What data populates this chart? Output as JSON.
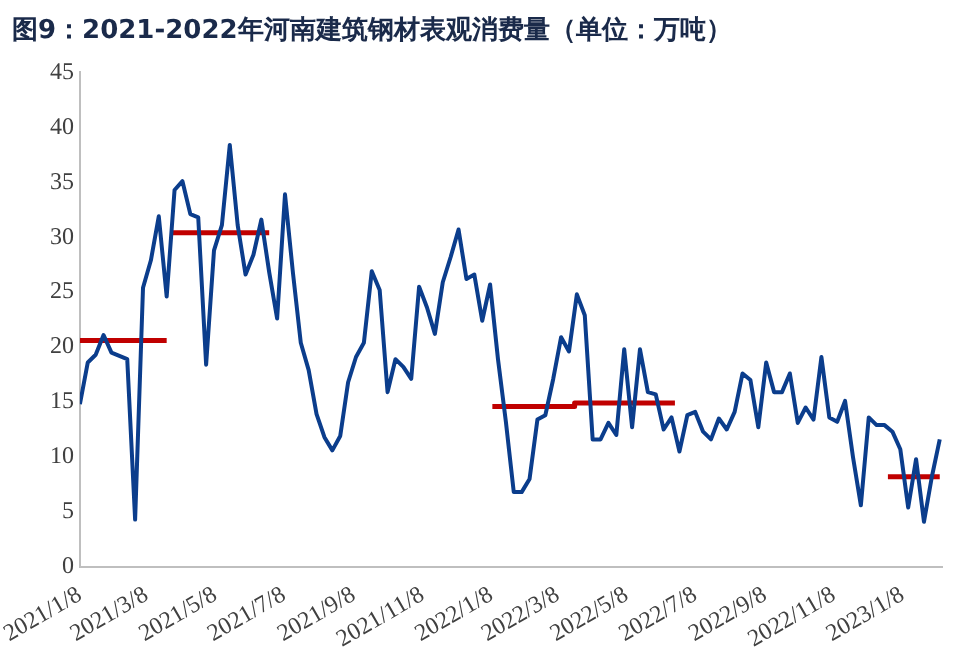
{
  "chart_data": {
    "type": "line",
    "title": "图9：2021-2022年河南建筑钢材表观消费量（单位：万吨）",
    "xlim": [
      "2021-01-08",
      "2023-02-12"
    ],
    "xticks": [
      {
        "value": "2021-01-08",
        "label": "2021/1/8"
      },
      {
        "value": "2021-03-08",
        "label": "2021/3/8"
      },
      {
        "value": "2021-05-08",
        "label": "2021/5/8"
      },
      {
        "value": "2021-07-08",
        "label": "2021/7/8"
      },
      {
        "value": "2021-09-08",
        "label": "2021/9/8"
      },
      {
        "value": "2021-11-08",
        "label": "2021/11/8"
      },
      {
        "value": "2022-01-08",
        "label": "2022/1/8"
      },
      {
        "value": "2022-03-08",
        "label": "2022/3/8"
      },
      {
        "value": "2022-05-08",
        "label": "2022/5/8"
      },
      {
        "value": "2022-07-08",
        "label": "2022/7/8"
      },
      {
        "value": "2022-09-08",
        "label": "2022/9/8"
      },
      {
        "value": "2022-11-08",
        "label": "2022/11/8"
      },
      {
        "value": "2023-01-08",
        "label": "2023/1/8"
      }
    ],
    "ylim": [
      0,
      45
    ],
    "yticks": [
      0,
      5,
      10,
      15,
      20,
      25,
      30,
      35,
      40,
      45
    ],
    "grid": false,
    "legend": false,
    "marker": "none",
    "line_style": "solid",
    "series": [
      {
        "color": "#0b3d8c",
        "x": [
          "2021-01-08",
          "2021-01-15",
          "2021-01-22",
          "2021-01-29",
          "2021-02-05",
          "2021-02-12",
          "2021-02-19",
          "2021-02-26",
          "2021-03-05",
          "2021-03-12",
          "2021-03-19",
          "2021-03-26",
          "2021-04-02",
          "2021-04-09",
          "2021-04-16",
          "2021-04-23",
          "2021-04-30",
          "2021-05-07",
          "2021-05-14",
          "2021-05-21",
          "2021-05-28",
          "2021-06-04",
          "2021-06-11",
          "2021-06-18",
          "2021-06-25",
          "2021-07-02",
          "2021-07-09",
          "2021-07-16",
          "2021-07-23",
          "2021-07-30",
          "2021-08-06",
          "2021-08-13",
          "2021-08-20",
          "2021-08-27",
          "2021-09-03",
          "2021-09-10",
          "2021-09-17",
          "2021-09-24",
          "2021-10-01",
          "2021-10-08",
          "2021-10-15",
          "2021-10-22",
          "2021-10-29",
          "2021-11-05",
          "2021-11-12",
          "2021-11-19",
          "2021-11-26",
          "2021-12-03",
          "2021-12-10",
          "2021-12-17",
          "2021-12-24",
          "2021-12-31",
          "2022-01-07",
          "2022-01-14",
          "2022-01-21",
          "2022-01-28",
          "2022-02-04",
          "2022-02-11",
          "2022-02-18",
          "2022-02-25",
          "2022-03-04",
          "2022-03-11",
          "2022-03-18",
          "2022-03-25",
          "2022-04-01",
          "2022-04-08",
          "2022-04-15",
          "2022-04-22",
          "2022-04-29",
          "2022-05-06",
          "2022-05-13",
          "2022-05-20",
          "2022-05-27",
          "2022-06-03",
          "2022-06-10",
          "2022-06-17",
          "2022-06-24",
          "2022-07-01",
          "2022-07-08",
          "2022-07-15",
          "2022-07-22",
          "2022-07-29",
          "2022-08-05",
          "2022-08-12",
          "2022-08-19",
          "2022-08-26",
          "2022-09-02",
          "2022-09-09",
          "2022-09-16",
          "2022-09-23",
          "2022-09-30",
          "2022-10-07",
          "2022-10-14",
          "2022-10-21",
          "2022-10-28",
          "2022-11-04",
          "2022-11-11",
          "2022-11-18",
          "2022-11-25",
          "2022-12-02",
          "2022-12-09",
          "2022-12-16",
          "2022-12-23",
          "2022-12-30",
          "2023-01-06",
          "2023-01-13",
          "2023-01-20",
          "2023-01-27",
          "2023-02-03",
          "2023-02-10"
        ],
        "values": [
          14.8,
          18.6,
          19.3,
          21.1,
          19.5,
          19.2,
          18.9,
          4.3,
          25.4,
          27.9,
          31.9,
          24.6,
          34.3,
          35.1,
          32.1,
          31.8,
          18.4,
          28.8,
          31.1,
          38.4,
          31.1,
          26.6,
          28.4,
          31.6,
          26.8,
          22.6,
          33.9,
          26.8,
          20.4,
          17.9,
          13.9,
          11.8,
          10.6,
          11.9,
          16.8,
          19.1,
          20.4,
          26.9,
          25.2,
          15.9,
          18.9,
          18.2,
          17.1,
          25.5,
          23.6,
          21.2,
          25.9,
          28.2,
          30.7,
          26.2,
          26.6,
          22.4,
          25.7,
          18.9,
          13.2,
          6.8,
          6.8,
          8.0,
          13.4,
          13.8,
          17.1,
          20.9,
          19.6,
          24.8,
          22.9,
          11.6,
          11.6,
          13.1,
          12.0,
          19.8,
          12.7,
          19.8,
          15.9,
          15.7,
          12.5,
          13.6,
          10.5,
          13.8,
          14.1,
          12.3,
          11.6,
          13.5,
          12.5,
          14.1,
          17.6,
          17.0,
          12.7,
          18.6,
          15.9,
          15.9,
          17.6,
          13.1,
          14.5,
          13.4,
          19.1,
          13.6,
          13.2,
          15.1,
          10.0,
          5.6,
          13.6,
          12.9,
          12.9,
          12.3,
          10.7,
          5.4,
          9.8,
          4.1,
          8.2,
          11.6
        ]
      },
      {
        "type": "line",
        "color": "#c00000",
        "x": [
          "2021-01-08",
          "2021-03-26"
        ],
        "values": [
          20.6,
          20.6
        ]
      },
      {
        "type": "line",
        "color": "#c00000",
        "x": [
          "2021-03-31",
          "2021-06-25"
        ],
        "values": [
          30.4,
          30.4
        ]
      },
      {
        "type": "line",
        "color": "#c00000",
        "x": [
          "2022-01-09",
          "2022-03-23",
          "2022-03-23",
          "2022-06-20"
        ],
        "values": [
          14.6,
          14.6,
          14.9,
          14.9
        ]
      },
      {
        "type": "line",
        "color": "#c00000",
        "x": [
          "2022-12-26",
          "2023-02-10"
        ],
        "values": [
          8.2,
          8.2
        ]
      }
    ]
  }
}
